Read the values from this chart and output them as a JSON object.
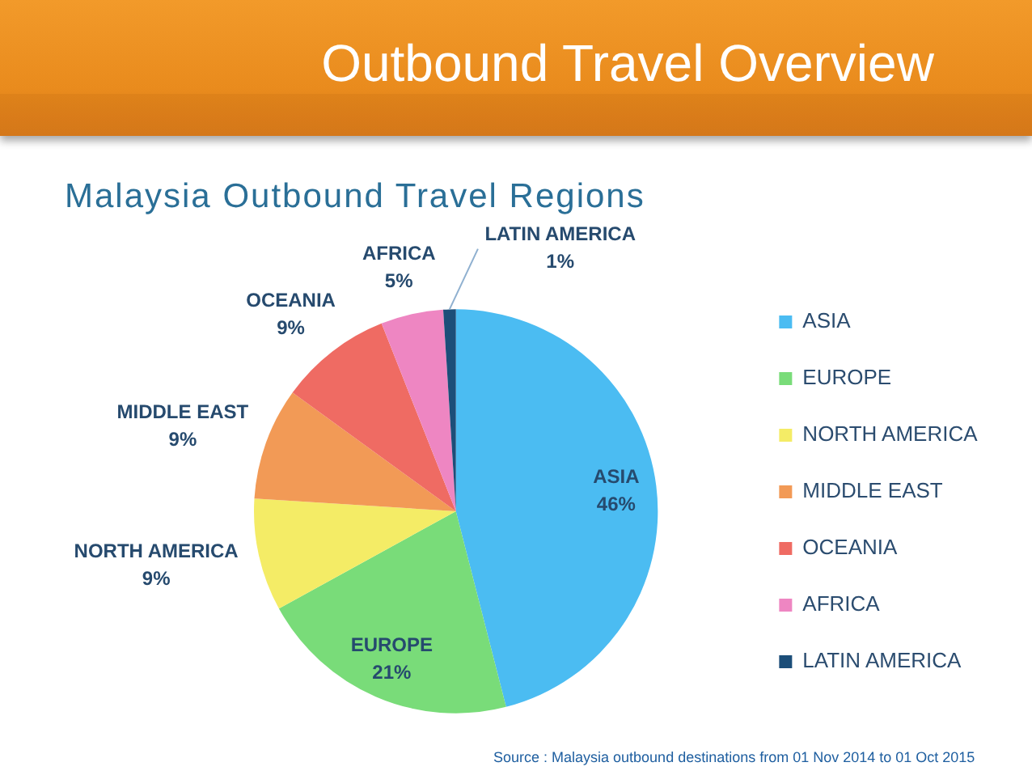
{
  "chart_data": {
    "type": "pie",
    "title": "Outbound Travel Overview",
    "subtitle": "Malaysia Outbound Travel Regions",
    "categories": [
      "ASIA",
      "EUROPE",
      "NORTH AMERICA",
      "MIDDLE EAST",
      "OCEANIA",
      "AFRICA",
      "LATIN AMERICA"
    ],
    "values": [
      46,
      21,
      9,
      9,
      9,
      5,
      1
    ],
    "colors": [
      "#4bbcf2",
      "#79dc79",
      "#f4ec66",
      "#f29a56",
      "#ef6b63",
      "#ee86c2",
      "#1c4e79"
    ],
    "value_labels": [
      "46%",
      "21%",
      "9%",
      "9%",
      "9%",
      "5%",
      "1%"
    ],
    "legend": "right",
    "annotations": [
      "Source : Malaysia outbound destinations from 01 Nov 2014 to 01 Oct 2015"
    ]
  }
}
